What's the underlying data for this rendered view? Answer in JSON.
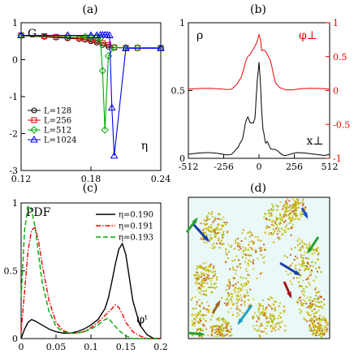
{
  "figure": {
    "panel_labels": [
      "(a)",
      "(b)",
      "(c)",
      "(d)"
    ]
  },
  "chart_data": [
    {
      "panel": "(a)",
      "type": "line",
      "ylabel": "G",
      "xlabel": "η",
      "xlim": [
        0.12,
        0.24
      ],
      "ylim": [
        -3,
        1
      ],
      "xticks": [
        "0.12",
        "0.18",
        "0.24"
      ],
      "yticks": [
        "1",
        "0",
        "-1",
        "-2",
        "-3"
      ],
      "legend_position": "lower-left",
      "series": [
        {
          "name": "L=128",
          "color": "#000000",
          "marker": "circle",
          "x": [
            0.12,
            0.14,
            0.15,
            0.16,
            0.17,
            0.175,
            0.18,
            0.185,
            0.19,
            0.195,
            0.2,
            0.21,
            0.22,
            0.24
          ],
          "y": [
            0.65,
            0.62,
            0.6,
            0.58,
            0.56,
            0.54,
            0.5,
            0.46,
            0.4,
            0.35,
            0.33,
            0.32,
            0.32,
            0.32
          ]
        },
        {
          "name": "L=256",
          "color": "#dd0000",
          "marker": "square",
          "x": [
            0.12,
            0.14,
            0.15,
            0.16,
            0.17,
            0.175,
            0.18,
            0.185,
            0.19,
            0.195,
            0.2,
            0.21,
            0.22,
            0.24
          ],
          "y": [
            0.66,
            0.64,
            0.62,
            0.6,
            0.58,
            0.56,
            0.54,
            0.5,
            0.45,
            0.4,
            0.33,
            0.32,
            0.32,
            0.32
          ]
        },
        {
          "name": "L=512",
          "color": "#00aa00",
          "marker": "diamond",
          "x": [
            0.12,
            0.16,
            0.175,
            0.18,
            0.185,
            0.188,
            0.19,
            0.192,
            0.195,
            0.2,
            0.21,
            0.22,
            0.24
          ],
          "y": [
            0.66,
            0.64,
            0.62,
            0.61,
            0.6,
            0.58,
            -0.3,
            -1.9,
            0.1,
            0.33,
            0.32,
            0.32,
            0.32
          ]
        },
        {
          "name": "L=1024",
          "color": "#0000ee",
          "marker": "triangle",
          "x": [
            0.12,
            0.16,
            0.18,
            0.185,
            0.188,
            0.19,
            0.192,
            0.194,
            0.196,
            0.198,
            0.2,
            0.21,
            0.24
          ],
          "y": [
            0.66,
            0.66,
            0.66,
            0.66,
            0.67,
            0.67,
            0.67,
            0.67,
            0.66,
            -1.3,
            -2.6,
            0.31,
            0.31
          ]
        }
      ]
    },
    {
      "panel": "(b)",
      "type": "line",
      "ylabel": "ρ",
      "y2label": "φ⊥",
      "xlabel": "x⊥",
      "xlim": [
        -512,
        512
      ],
      "ylim": [
        0,
        1
      ],
      "y2lim": [
        -1,
        1
      ],
      "xticks": [
        "-512",
        "-256",
        "0",
        "256",
        "512"
      ],
      "yticks": [
        "1",
        "0.5",
        "0"
      ],
      "y2ticks": [
        "1",
        "0.5",
        "0",
        "-0.5",
        "-1"
      ],
      "series": [
        {
          "name": "ρ",
          "color": "#000000",
          "axis": "left",
          "x": [
            -512,
            -300,
            -200,
            -150,
            -120,
            -100,
            -80,
            -60,
            -40,
            -30,
            -20,
            -10,
            0,
            10,
            20,
            30,
            40,
            50,
            60,
            80,
            100,
            150,
            200,
            300,
            512
          ],
          "y": [
            0.03,
            0.03,
            0.04,
            0.07,
            0.15,
            0.25,
            0.3,
            0.27,
            0.25,
            0.3,
            0.45,
            0.6,
            0.72,
            0.55,
            0.35,
            0.2,
            0.15,
            0.12,
            0.11,
            0.09,
            0.06,
            0.04,
            0.03,
            0.03,
            0.03
          ]
        },
        {
          "name": "φ⊥",
          "color": "#ee0000",
          "axis": "right",
          "x": [
            -512,
            -300,
            -200,
            -160,
            -130,
            -100,
            -80,
            -60,
            -40,
            -20,
            0,
            10,
            20,
            40,
            60,
            80,
            100,
            120,
            150,
            200,
            300,
            512
          ],
          "y": [
            0.02,
            0.02,
            0.03,
            0.08,
            0.2,
            0.4,
            0.5,
            0.56,
            0.6,
            0.7,
            0.82,
            0.75,
            0.6,
            0.58,
            0.55,
            0.45,
            0.28,
            0.12,
            0.03,
            0.02,
            0.02,
            0.02
          ]
        }
      ]
    },
    {
      "panel": "(c)",
      "type": "line",
      "ylabel": "PDF",
      "xlabel": "φᵗ",
      "xlim": [
        0,
        0.2
      ],
      "ylim": [
        0,
        1
      ],
      "xticks": [
        "0",
        "0.05",
        "0.1",
        "0.15",
        "0.2"
      ],
      "yticks": [
        "1",
        "0.5",
        "0"
      ],
      "legend_position": "top-right",
      "series": [
        {
          "name": "η=0.190",
          "color": "#000000",
          "dash": "solid",
          "x": [
            0,
            0.005,
            0.01,
            0.015,
            0.02,
            0.03,
            0.04,
            0.05,
            0.06,
            0.07,
            0.08,
            0.09,
            0.1,
            0.11,
            0.12,
            0.125,
            0.13,
            0.135,
            0.14,
            0.145,
            0.15,
            0.155,
            0.16,
            0.17,
            0.18,
            0.19,
            0.2
          ],
          "y": [
            0.0,
            0.07,
            0.12,
            0.14,
            0.13,
            0.1,
            0.07,
            0.05,
            0.04,
            0.04,
            0.05,
            0.07,
            0.1,
            0.14,
            0.22,
            0.3,
            0.42,
            0.55,
            0.66,
            0.7,
            0.62,
            0.45,
            0.28,
            0.1,
            0.03,
            0.0,
            0.0
          ]
        },
        {
          "name": "η=0.191",
          "color": "#ee0000",
          "dash": "dashdot",
          "x": [
            0,
            0.005,
            0.01,
            0.015,
            0.02,
            0.025,
            0.03,
            0.04,
            0.05,
            0.06,
            0.07,
            0.08,
            0.09,
            0.1,
            0.11,
            0.12,
            0.13,
            0.135,
            0.14,
            0.145,
            0.15,
            0.16,
            0.17,
            0.18,
            0.2
          ],
          "y": [
            0.05,
            0.35,
            0.65,
            0.8,
            0.82,
            0.72,
            0.55,
            0.28,
            0.12,
            0.06,
            0.04,
            0.04,
            0.05,
            0.08,
            0.12,
            0.17,
            0.22,
            0.25,
            0.23,
            0.18,
            0.12,
            0.05,
            0.02,
            0.0,
            0.0
          ]
        },
        {
          "name": "η=0.193",
          "color": "#00aa00",
          "dash": "dashed",
          "x": [
            0,
            0.005,
            0.01,
            0.015,
            0.02,
            0.025,
            0.03,
            0.04,
            0.05,
            0.06,
            0.07,
            0.08,
            0.09,
            0.1,
            0.11,
            0.12,
            0.125,
            0.13,
            0.14,
            0.15,
            0.16,
            0.18,
            0.2
          ],
          "y": [
            0.3,
            0.8,
            0.98,
            0.95,
            0.82,
            0.62,
            0.42,
            0.2,
            0.09,
            0.05,
            0.04,
            0.04,
            0.05,
            0.07,
            0.1,
            0.14,
            0.15,
            0.12,
            0.06,
            0.02,
            0.0,
            0.0,
            0.0
          ]
        }
      ]
    }
  ]
}
